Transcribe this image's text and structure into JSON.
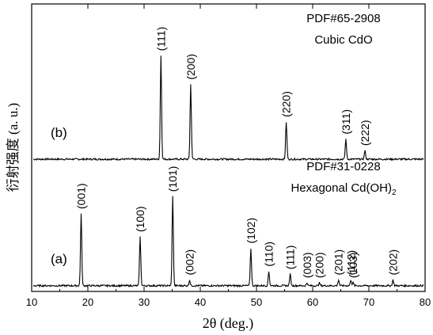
{
  "chart_data": {
    "type": "line",
    "xlabel": "2θ (deg.)",
    "ylabel": "衍射强度 (a. u.)",
    "xlim": [
      10,
      80
    ],
    "x_ticks": [
      "10",
      "20",
      "30",
      "40",
      "50",
      "60",
      "70",
      "80"
    ],
    "grid": false,
    "series": [
      {
        "name": "(b)",
        "note_lines": [
          "PDF#65-2908",
          "Cubic CdO"
        ],
        "baseline": 0.46,
        "peaks": [
          {
            "x": 33.0,
            "height": 0.36,
            "label": "(111)"
          },
          {
            "x": 38.3,
            "height": 0.26,
            "label": "(200)"
          },
          {
            "x": 55.3,
            "height": 0.13,
            "label": "(220)"
          },
          {
            "x": 65.9,
            "height": 0.07,
            "label": "(311)"
          },
          {
            "x": 69.3,
            "height": 0.03,
            "label": "(222)"
          }
        ]
      },
      {
        "name": "(a)",
        "note_lines": [
          "PDF#31-0228",
          "Hexagonal Cd(OH)"
        ],
        "note_subscript": "2",
        "baseline": 0.02,
        "peaks": [
          {
            "x": 18.8,
            "height": 0.25,
            "label": "(001)"
          },
          {
            "x": 29.3,
            "height": 0.17,
            "label": "(100)"
          },
          {
            "x": 35.1,
            "height": 0.31,
            "label": "(101)"
          },
          {
            "x": 38.1,
            "height": 0.02,
            "label": "(002)"
          },
          {
            "x": 49.0,
            "height": 0.13,
            "label": "(102)"
          },
          {
            "x": 52.2,
            "height": 0.05,
            "label": "(110)"
          },
          {
            "x": 56.0,
            "height": 0.04,
            "label": "(111)"
          },
          {
            "x": 59.0,
            "height": 0.01,
            "label": "(003)"
          },
          {
            "x": 61.2,
            "height": 0.01,
            "label": "(200)"
          },
          {
            "x": 64.6,
            "height": 0.02,
            "label": "(201)"
          },
          {
            "x": 66.8,
            "height": 0.02,
            "label": "(112)"
          },
          {
            "x": 67.2,
            "height": 0.01,
            "label": "(103)"
          },
          {
            "x": 74.3,
            "height": 0.02,
            "label": "(202)"
          }
        ]
      }
    ]
  }
}
